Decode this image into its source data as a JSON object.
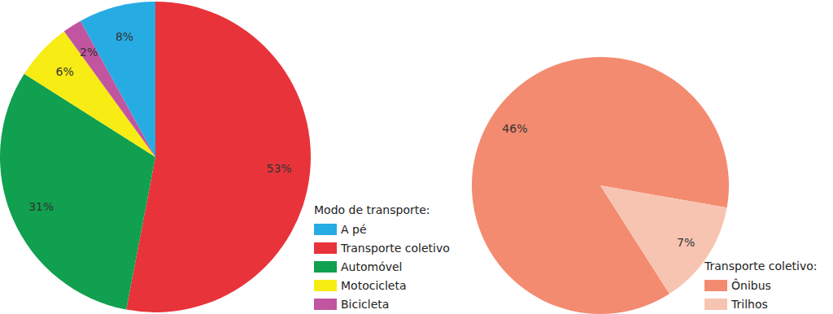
{
  "chart_data": [
    {
      "type": "pie",
      "legend_title": "Modo de transporte:",
      "categories": [
        "A pé",
        "Transporte coletivo",
        "Automóvel",
        "Motocicleta",
        "Bicicleta"
      ],
      "values": [
        8,
        53,
        31,
        6,
        2
      ],
      "value_labels": [
        "8%",
        "53%",
        "31%",
        "6%",
        "2%"
      ],
      "colors": [
        "#27abe3",
        "#e8333a",
        "#10a04f",
        "#f7ec13",
        "#c2559f"
      ],
      "data_labels": true,
      "legend": "bottom-right"
    },
    {
      "type": "pie",
      "legend_title": "Transporte coletivo:",
      "categories": [
        "Ônibus",
        "Trilhos"
      ],
      "values": [
        46,
        7
      ],
      "value_labels": [
        "46%",
        "7%"
      ],
      "colors": [
        "#f38b70",
        "#f8c4b2"
      ],
      "data_labels": true,
      "legend": "bottom-right"
    }
  ]
}
